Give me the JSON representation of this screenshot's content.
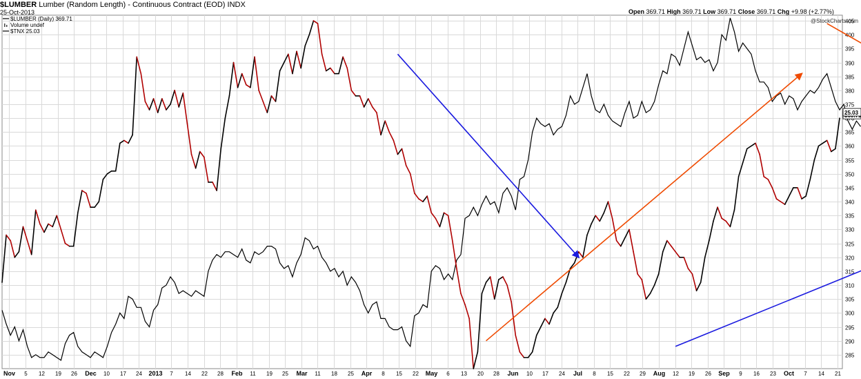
{
  "header": {
    "symbol": "$LUMBER",
    "description": "Lumber (Random Length) - Continuous Contract (EOD)",
    "exchange": "INDX",
    "date": "25-Oct-2013",
    "watermark": "@StockCharts.com",
    "ohlc": [
      {
        "label": "Open",
        "value": "369.71"
      },
      {
        "label": "High",
        "value": "369.71"
      },
      {
        "label": "Low",
        "value": "369.71"
      },
      {
        "label": "Close",
        "value": "369.71"
      },
      {
        "label": "Chg",
        "value": "+9.98 (+2.77%)"
      }
    ]
  },
  "legend": [
    {
      "text": "$LUMBER (Daily) 369.71",
      "swatch": "line"
    },
    {
      "text": "Volume undef",
      "swatch": "bars"
    },
    {
      "text": "$TNX 25.03",
      "swatch": "line"
    }
  ],
  "colors": {
    "down": "#b00000",
    "up": "#000000",
    "arrow_blue": "#1a1adf",
    "arrow_orange": "#ef4a00",
    "grid": "#d9d9d9"
  },
  "chart_data": {
    "type": "line",
    "ylim": [
      280,
      407
    ],
    "yticks": [
      285,
      290,
      295,
      300,
      305,
      310,
      315,
      320,
      325,
      330,
      335,
      340,
      345,
      350,
      355,
      360,
      365,
      370,
      375,
      380,
      385,
      390,
      395,
      400,
      405
    ],
    "last_labels": [
      "369.71",
      "25.03"
    ],
    "x_ticks": [
      "Nov",
      "5",
      "12",
      "19",
      "26",
      "Dec",
      "10",
      "17",
      "24",
      "2013",
      "7",
      "14",
      "22",
      "28",
      "Feb",
      "11",
      "19",
      "25",
      "Mar",
      "11",
      "18",
      "25",
      "Apr",
      "8",
      "15",
      "22",
      "May",
      "6",
      "13",
      "20",
      "28",
      "Jun",
      "10",
      "17",
      "24",
      "Jul",
      "8",
      "15",
      "22",
      "29",
      "Aug",
      "12",
      "19",
      "26",
      "Sep",
      "9",
      "16",
      "23",
      "Oct",
      "7",
      "14",
      "21"
    ],
    "x_tick_bold": [
      "Nov",
      "Dec",
      "2013",
      "Feb",
      "Mar",
      "Apr",
      "May",
      "Jun",
      "Jul",
      "Aug",
      "Sep",
      "Oct"
    ],
    "series": [
      {
        "name": "$LUMBER",
        "values": [
          311,
          328,
          326,
          320,
          322,
          331,
          326,
          321,
          337,
          332,
          329,
          332,
          331,
          335,
          330,
          325,
          324,
          324,
          336,
          344,
          343,
          338,
          338,
          340,
          348,
          350,
          351,
          351,
          361,
          362,
          361,
          364,
          392,
          386,
          376,
          373,
          377,
          372,
          377,
          373,
          375,
          380,
          374,
          379,
          368,
          357,
          352,
          358,
          356,
          347,
          347,
          344,
          359,
          370,
          378,
          390,
          381,
          386,
          382,
          381,
          392,
          380,
          376,
          372,
          378,
          376,
          387,
          390,
          393,
          386,
          394,
          388,
          396,
          400,
          405,
          404,
          393,
          387,
          388,
          386,
          386,
          392,
          388,
          380,
          378,
          378,
          374,
          377,
          374,
          372,
          364,
          369,
          365,
          362,
          357,
          359,
          353,
          350,
          343,
          341,
          340,
          342,
          336,
          334,
          331,
          336,
          335,
          326,
          316,
          307,
          303,
          298,
          280,
          286,
          307,
          311,
          313,
          305,
          312,
          313,
          310,
          304,
          292,
          286,
          284,
          284,
          286,
          292,
          295,
          298,
          296,
          300,
          302,
          307,
          311,
          316,
          318,
          322,
          320,
          328,
          332,
          335,
          333,
          336,
          340,
          334,
          326,
          324,
          327,
          330,
          322,
          314,
          312,
          305,
          307,
          310,
          314,
          322,
          326,
          324,
          322,
          320,
          320,
          316,
          314,
          308,
          311,
          320,
          326,
          333,
          338,
          334,
          333,
          331,
          337,
          349,
          354,
          359,
          360,
          361,
          357,
          349,
          348,
          345,
          341,
          340,
          339,
          342,
          345,
          345,
          341,
          342,
          348,
          355,
          360,
          361,
          362,
          358,
          359,
          370
        ],
        "down_color": "#b00000",
        "up_color": "#000000"
      },
      {
        "name": "$TNX",
        "values": [
          301,
          296,
          292,
          295,
          290,
          294,
          288,
          284,
          285,
          284,
          284,
          286,
          285,
          284,
          283,
          289,
          292,
          293,
          288,
          286,
          285,
          284,
          286,
          285,
          284,
          288,
          293,
          296,
          300,
          298,
          306,
          305,
          302,
          302,
          297,
          295,
          301,
          303,
          309,
          310,
          313,
          311,
          307,
          308,
          307,
          306,
          308,
          307,
          306,
          315,
          319,
          321,
          320,
          322,
          322,
          321,
          320,
          323,
          319,
          318,
          322,
          321,
          322,
          324,
          324,
          323,
          318,
          316,
          317,
          313,
          318,
          321,
          327,
          326,
          323,
          324,
          320,
          318,
          315,
          316,
          313,
          315,
          310,
          313,
          311,
          308,
          303,
          300,
          303,
          304,
          298,
          298,
          295,
          294,
          294,
          295,
          290,
          288,
          299,
          300,
          303,
          302,
          315,
          317,
          316,
          312,
          314,
          312,
          319,
          321,
          334,
          335,
          338,
          335,
          339,
          342,
          339,
          340,
          336,
          343,
          345,
          342,
          337,
          348,
          349,
          355,
          365,
          370,
          368,
          367,
          368,
          364,
          366,
          367,
          371,
          378,
          375,
          376,
          381,
          386,
          378,
          373,
          372,
          375,
          371,
          369,
          368,
          367,
          372,
          376,
          370,
          371,
          376,
          372,
          373,
          376,
          382,
          387,
          386,
          393,
          392,
          389,
          395,
          401,
          396,
          391,
          392,
          390,
          391,
          387,
          390,
          400,
          398,
          406,
          401,
          394,
          397,
          395,
          393,
          387,
          383,
          383,
          381,
          376,
          378,
          379,
          375,
          378,
          377,
          373,
          376,
          378,
          380,
          379,
          381,
          384,
          386,
          381,
          376,
          373,
          375,
          369,
          366,
          369,
          367
        ],
        "color": "#000000"
      }
    ],
    "arrows": [
      {
        "color": "#1a1adf",
        "from": [
          94,
          393
        ],
        "to": [
          137,
          320
        ]
      },
      {
        "color": "#ef4a00",
        "from": [
          115,
          290
        ],
        "to": [
          190,
          386
        ]
      },
      {
        "color": "#ef4a00",
        "from": [
          196,
          404
        ],
        "to": [
          225,
          379
        ]
      },
      {
        "color": "#1a1adf",
        "from": [
          160,
          288
        ],
        "to": [
          225,
          328
        ]
      }
    ]
  }
}
